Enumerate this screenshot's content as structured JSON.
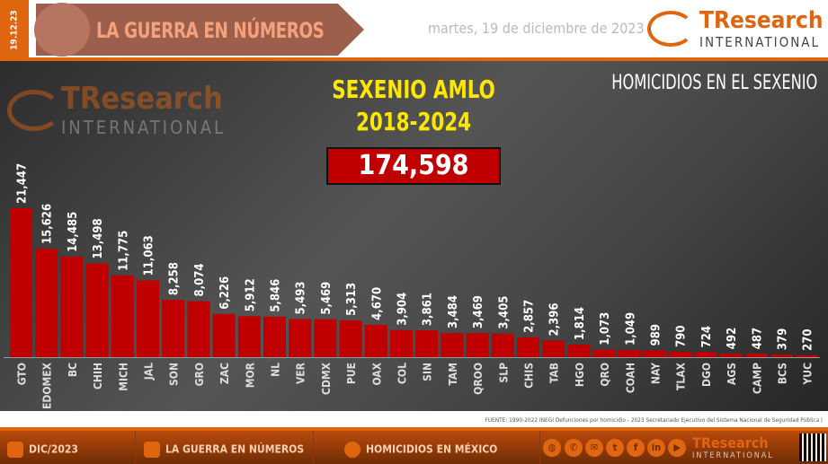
{
  "header": {
    "date_side": "19.12.23",
    "banner_title": "LA GUERRA EN NÚMEROS",
    "date": "martes, 19 de diciembre de 2023",
    "logo": {
      "name": "TResearch",
      "sub": "INTERNATIONAL"
    }
  },
  "panel": {
    "sexenio_line1": "SEXENIO AMLO",
    "sexenio_line2": "2018-2024",
    "total": "174,598",
    "title": "HOMICIDIOS EN EL SEXENIO"
  },
  "chart_data": {
    "type": "bar",
    "title": "HOMICIDIOS EN EL SEXENIO",
    "categories": [
      "GTO",
      "EDOMEX",
      "BC",
      "CHIH",
      "MICH",
      "JAL",
      "SON",
      "GRO",
      "ZAC",
      "MOR",
      "NL",
      "VER",
      "CDMX",
      "PUE",
      "OAX",
      "COL",
      "SIN",
      "TAM",
      "QROO",
      "SLP",
      "CHIS",
      "TAB",
      "HGO",
      "QRO",
      "COAH",
      "NAY",
      "TLAX",
      "DGO",
      "AGS",
      "CAMP",
      "BCS",
      "YUC"
    ],
    "values": [
      21447,
      15626,
      14485,
      13498,
      11775,
      11063,
      8258,
      8074,
      6226,
      5912,
      5846,
      5493,
      5469,
      5313,
      4670,
      3904,
      3861,
      3484,
      3469,
      3405,
      2857,
      2396,
      1814,
      1073,
      1049,
      989,
      790,
      724,
      492,
      487,
      379,
      270
    ],
    "value_labels": [
      "21,447",
      "15,626",
      "14,485",
      "13,498",
      "11,775",
      "11,063",
      "8,258",
      "8,074",
      "6,226",
      "5,912",
      "5,846",
      "5,493",
      "5,469",
      "5,313",
      "4,670",
      "3,904",
      "3,861",
      "3,484",
      "3,469",
      "3,405",
      "2,857",
      "2,396",
      "1,814",
      "1,073",
      "1,049",
      "989",
      "790",
      "724",
      "492",
      "487",
      "379",
      "270"
    ],
    "bar_color": "#c00000",
    "grid": false
  },
  "source": "FUENTE: 1990-2022 INEGI Defunciones por homicidio - 2023 Secretariado Ejecutivo del Sistema Nacional de Seguridad Pública |",
  "footer": {
    "date": "DIC/2023",
    "section": "LA GUERRA EN NÚMEROS",
    "topic": "HOMICIDIOS EN MÉXICO",
    "social": [
      "globe-icon",
      "whatsapp-icon",
      "mail-icon",
      "twitter-icon",
      "facebook-icon",
      "linkedin-icon",
      "youtube-icon"
    ],
    "logo": {
      "name": "TResearch",
      "sub": "INTERNATIONAL"
    }
  },
  "colors": {
    "accent": "#e0650f",
    "bar": "#c00000",
    "highlight": "#ffe600"
  }
}
